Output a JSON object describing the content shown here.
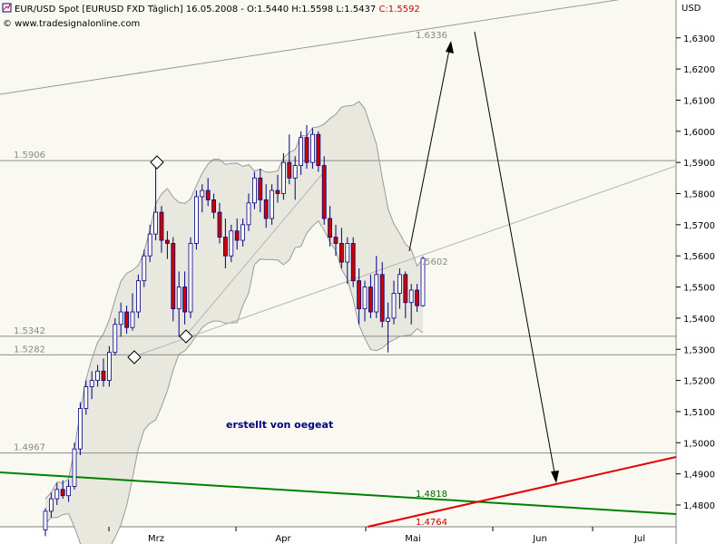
{
  "header": {
    "title": "EUR/USD Spot [EURUSD FXD  Täglich] 16.05.2008 - O:1.5440 H:1.5598 L:1.5437 ",
    "close": "C:1.5592",
    "website": "© www.tradesignalonline.com",
    "currency": "USD"
  },
  "annotation": "erstellt von oegeat",
  "colors": {
    "plot_bg": "#f9f9f2",
    "axis_bg": "#ffffff",
    "bullish": "#ffffff",
    "bearish": "#cc0000",
    "wick": "#000080",
    "support": "#008000",
    "resistance": "#e00000",
    "band_fill": "#e6e6dd",
    "ref_line": "#999999",
    "close_text": "#cc0000"
  },
  "chart_data": {
    "type": "candlestick",
    "title": "EUR/USD Spot [EURUSD FXD Täglich]",
    "ylim": [
      1.473,
      1.6515
    ],
    "y_ticks": [
      "1,4800",
      "1,4900",
      "1,5000",
      "1,5100",
      "1,5200",
      "1,5300",
      "1,5400",
      "1,5500",
      "1,5600",
      "1,5700",
      "1,5800",
      "1,5900",
      "1,6000",
      "1,6100",
      "1,6200",
      "1,6300"
    ],
    "x_ticks": [
      "Mrz",
      "Apr",
      "Mai",
      "Jun",
      "Jul"
    ],
    "last_candle": {
      "date": "16.05.2008",
      "open": 1.544,
      "high": 1.5598,
      "low": 1.5437,
      "close": 1.5592
    },
    "candles": [
      {
        "o": 1.472,
        "h": 1.479,
        "l": 1.47,
        "c": 1.478
      },
      {
        "o": 1.478,
        "h": 1.484,
        "l": 1.476,
        "c": 1.482
      },
      {
        "o": 1.482,
        "h": 1.487,
        "l": 1.48,
        "c": 1.485
      },
      {
        "o": 1.485,
        "h": 1.488,
        "l": 1.482,
        "c": 1.483
      },
      {
        "o": 1.483,
        "h": 1.488,
        "l": 1.481,
        "c": 1.486
      },
      {
        "o": 1.486,
        "h": 1.5,
        "l": 1.485,
        "c": 1.498
      },
      {
        "o": 1.498,
        "h": 1.513,
        "l": 1.496,
        "c": 1.511
      },
      {
        "o": 1.511,
        "h": 1.52,
        "l": 1.509,
        "c": 1.518
      },
      {
        "o": 1.518,
        "h": 1.523,
        "l": 1.514,
        "c": 1.52
      },
      {
        "o": 1.52,
        "h": 1.525,
        "l": 1.518,
        "c": 1.523
      },
      {
        "o": 1.523,
        "h": 1.527,
        "l": 1.518,
        "c": 1.52
      },
      {
        "o": 1.52,
        "h": 1.531,
        "l": 1.518,
        "c": 1.529
      },
      {
        "o": 1.529,
        "h": 1.54,
        "l": 1.528,
        "c": 1.538
      },
      {
        "o": 1.538,
        "h": 1.545,
        "l": 1.534,
        "c": 1.542
      },
      {
        "o": 1.542,
        "h": 1.544,
        "l": 1.535,
        "c": 1.537
      },
      {
        "o": 1.537,
        "h": 1.548,
        "l": 1.536,
        "c": 1.542
      },
      {
        "o": 1.542,
        "h": 1.554,
        "l": 1.54,
        "c": 1.552
      },
      {
        "o": 1.552,
        "h": 1.562,
        "l": 1.55,
        "c": 1.56
      },
      {
        "o": 1.56,
        "h": 1.57,
        "l": 1.558,
        "c": 1.567
      },
      {
        "o": 1.567,
        "h": 1.589,
        "l": 1.565,
        "c": 1.574
      },
      {
        "o": 1.574,
        "h": 1.576,
        "l": 1.561,
        "c": 1.565
      },
      {
        "o": 1.565,
        "h": 1.568,
        "l": 1.559,
        "c": 1.564
      },
      {
        "o": 1.564,
        "h": 1.566,
        "l": 1.539,
        "c": 1.543
      },
      {
        "o": 1.543,
        "h": 1.555,
        "l": 1.534,
        "c": 1.55
      },
      {
        "o": 1.55,
        "h": 1.555,
        "l": 1.538,
        "c": 1.542
      },
      {
        "o": 1.542,
        "h": 1.566,
        "l": 1.54,
        "c": 1.564
      },
      {
        "o": 1.564,
        "h": 1.581,
        "l": 1.562,
        "c": 1.579
      },
      {
        "o": 1.579,
        "h": 1.583,
        "l": 1.574,
        "c": 1.581
      },
      {
        "o": 1.581,
        "h": 1.585,
        "l": 1.576,
        "c": 1.578
      },
      {
        "o": 1.578,
        "h": 1.58,
        "l": 1.572,
        "c": 1.574
      },
      {
        "o": 1.574,
        "h": 1.577,
        "l": 1.564,
        "c": 1.566
      },
      {
        "o": 1.566,
        "h": 1.572,
        "l": 1.556,
        "c": 1.56
      },
      {
        "o": 1.56,
        "h": 1.57,
        "l": 1.558,
        "c": 1.568
      },
      {
        "o": 1.568,
        "h": 1.572,
        "l": 1.562,
        "c": 1.565
      },
      {
        "o": 1.565,
        "h": 1.572,
        "l": 1.563,
        "c": 1.57
      },
      {
        "o": 1.57,
        "h": 1.58,
        "l": 1.568,
        "c": 1.577
      },
      {
        "o": 1.577,
        "h": 1.587,
        "l": 1.575,
        "c": 1.585
      },
      {
        "o": 1.585,
        "h": 1.588,
        "l": 1.574,
        "c": 1.578
      },
      {
        "o": 1.578,
        "h": 1.583,
        "l": 1.569,
        "c": 1.572
      },
      {
        "o": 1.572,
        "h": 1.583,
        "l": 1.57,
        "c": 1.581
      },
      {
        "o": 1.581,
        "h": 1.586,
        "l": 1.577,
        "c": 1.58
      },
      {
        "o": 1.58,
        "h": 1.593,
        "l": 1.578,
        "c": 1.59
      },
      {
        "o": 1.59,
        "h": 1.599,
        "l": 1.583,
        "c": 1.585
      },
      {
        "o": 1.585,
        "h": 1.592,
        "l": 1.578,
        "c": 1.589
      },
      {
        "o": 1.589,
        "h": 1.6,
        "l": 1.586,
        "c": 1.598
      },
      {
        "o": 1.598,
        "h": 1.602,
        "l": 1.588,
        "c": 1.59
      },
      {
        "o": 1.59,
        "h": 1.601,
        "l": 1.588,
        "c": 1.599
      },
      {
        "o": 1.599,
        "h": 1.6,
        "l": 1.587,
        "c": 1.589
      },
      {
        "o": 1.589,
        "h": 1.592,
        "l": 1.57,
        "c": 1.572
      },
      {
        "o": 1.572,
        "h": 1.576,
        "l": 1.563,
        "c": 1.566
      },
      {
        "o": 1.566,
        "h": 1.57,
        "l": 1.56,
        "c": 1.564
      },
      {
        "o": 1.564,
        "h": 1.569,
        "l": 1.556,
        "c": 1.558
      },
      {
        "o": 1.558,
        "h": 1.566,
        "l": 1.551,
        "c": 1.564
      },
      {
        "o": 1.564,
        "h": 1.566,
        "l": 1.55,
        "c": 1.552
      },
      {
        "o": 1.552,
        "h": 1.556,
        "l": 1.538,
        "c": 1.543
      },
      {
        "o": 1.543,
        "h": 1.552,
        "l": 1.539,
        "c": 1.55
      },
      {
        "o": 1.55,
        "h": 1.554,
        "l": 1.54,
        "c": 1.542
      },
      {
        "o": 1.542,
        "h": 1.56,
        "l": 1.54,
        "c": 1.554
      },
      {
        "o": 1.554,
        "h": 1.558,
        "l": 1.537,
        "c": 1.539
      },
      {
        "o": 1.539,
        "h": 1.545,
        "l": 1.529,
        "c": 1.54
      },
      {
        "o": 1.54,
        "h": 1.552,
        "l": 1.538,
        "c": 1.548
      },
      {
        "o": 1.548,
        "h": 1.556,
        "l": 1.543,
        "c": 1.554
      },
      {
        "o": 1.554,
        "h": 1.555,
        "l": 1.54,
        "c": 1.545
      },
      {
        "o": 1.545,
        "h": 1.551,
        "l": 1.538,
        "c": 1.549
      },
      {
        "o": 1.549,
        "h": 1.551,
        "l": 1.542,
        "c": 1.544
      },
      {
        "o": 1.544,
        "h": 1.5598,
        "l": 1.5437,
        "c": 1.5592
      }
    ],
    "reference_lines": [
      {
        "value": 1.5906,
        "label": "1.5906"
      },
      {
        "value": 1.5342,
        "label": "1.5342"
      },
      {
        "value": 1.5282,
        "label": "1.5282"
      },
      {
        "value": 1.4967,
        "label": "1.4967"
      }
    ],
    "projection_labels": {
      "target": "1.6336",
      "current": ".5602"
    },
    "support_line": {
      "label": "1.4818",
      "value": 1.4818
    },
    "resistance_line": {
      "label": "1.4764",
      "value": 1.4764
    }
  }
}
